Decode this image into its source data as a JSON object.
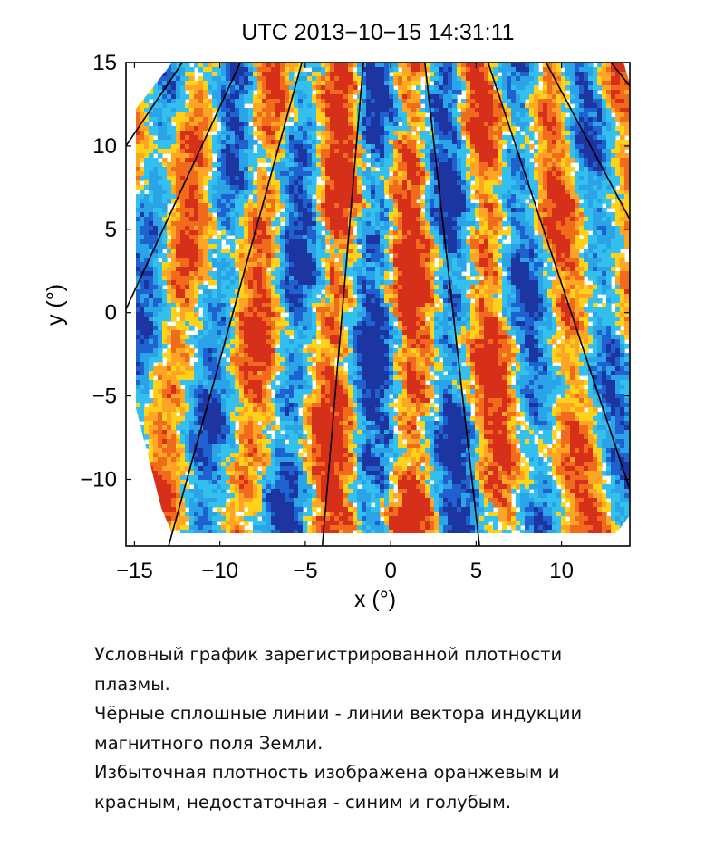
{
  "chart_data": {
    "type": "heatmap",
    "title": "UTC 2013−10−15 14:31:11",
    "xlabel": "x (°)",
    "ylabel": "y (°)",
    "xlim": [
      -15.5,
      14
    ],
    "ylim": [
      -14,
      15
    ],
    "x_ticks": [
      -15,
      -10,
      -5,
      0,
      5,
      10
    ],
    "x_tick_labels": [
      "−15",
      "−10",
      "−5",
      "0",
      "5",
      "10"
    ],
    "y_ticks": [
      15,
      10,
      5,
      0,
      -5,
      -10
    ],
    "y_tick_labels": [
      "15",
      "10",
      "5",
      "0",
      "−5",
      "−10"
    ],
    "grid": false,
    "colormap": {
      "excess": [
        "#ffd21a",
        "#ffa526",
        "#f06b1c",
        "#d7301a"
      ],
      "deficit": [
        "#33c0ef",
        "#2aa4e6",
        "#1f62cf",
        "#1d35a0"
      ],
      "neutral": "#ffffff"
    },
    "magnetic_field_lines": [
      {
        "name": "",
        "points": [
          [
            -15.5,
            10
          ],
          [
            -12.2,
            15
          ]
        ]
      },
      {
        "name": "",
        "points": [
          [
            -15.5,
            0.2
          ],
          [
            -8.8,
            15
          ]
        ]
      },
      {
        "name": "",
        "points": [
          [
            -13.0,
            -14
          ],
          [
            -5.2,
            15
          ]
        ]
      },
      {
        "name": "",
        "points": [
          [
            -4.0,
            -14
          ],
          [
            -1.6,
            15
          ]
        ]
      },
      {
        "name": "",
        "points": [
          [
            5.2,
            -14
          ],
          [
            2.0,
            15
          ]
        ]
      },
      {
        "name": "",
        "points": [
          [
            14.0,
            -10.6
          ],
          [
            5.7,
            15
          ]
        ]
      },
      {
        "name": "",
        "points": [
          [
            14.0,
            5.6
          ],
          [
            9.1,
            15
          ]
        ]
      },
      {
        "name": "",
        "points": [
          [
            14.0,
            13.6
          ],
          [
            12.9,
            15
          ]
        ]
      }
    ]
  },
  "caption": {
    "line1": "Условный график зарегистрированной плотности",
    "line2": "плазмы.",
    "line3": "Чёрные сплошные линии - линии вектора индукции",
    "line4": "магнитного поля Земли.",
    "line5": "Избыточная плотность изображена оранжевым и",
    "line6": "красным, недостаточная - синим и голубым."
  }
}
